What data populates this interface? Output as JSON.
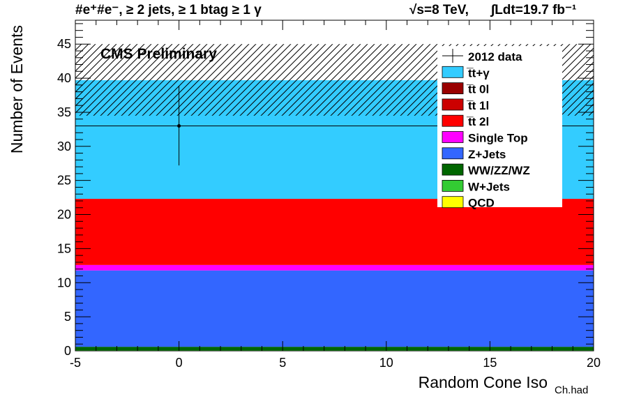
{
  "chart_data": {
    "type": "bar",
    "header_left": "#e⁺#e⁻, ≥ 2 jets, ≥ 1 btag ≥ 1 γ",
    "header_right_energy": "√s=8 TeV,",
    "header_right_lumi": "∫Ldt=19.7 fb⁻¹",
    "watermark": "CMS Preliminary",
    "xlabel": "Random Cone Iso",
    "xlabel_sub": "Ch.had",
    "ylabel": "Number of Events",
    "xlim": [
      -5,
      20
    ],
    "ylim": [
      0,
      48.5
    ],
    "x_ticks": [
      -5,
      0,
      5,
      10,
      15,
      20
    ],
    "y_ticks": [
      0,
      5,
      10,
      15,
      20,
      25,
      30,
      35,
      40,
      45
    ],
    "legend_position": "top-right",
    "bin": [
      -5,
      20
    ],
    "stack": [
      {
        "name": "QCD",
        "value": 0.0,
        "color": "#ffff00"
      },
      {
        "name": "W+Jets",
        "value": 0.1,
        "color": "#33cc33"
      },
      {
        "name": "WW/ZZ/WZ",
        "value": 0.5,
        "color": "#006600"
      },
      {
        "name": "Z+Jets",
        "value": 11.2,
        "color": "#3366ff"
      },
      {
        "name": "Single Top",
        "value": 0.8,
        "color": "#ff00ff"
      },
      {
        "name": "t̅t 2l",
        "value": 9.7,
        "color": "#ff0000"
      },
      {
        "name": "t̅t 1l",
        "value": 0.0,
        "color": "#cc0000"
      },
      {
        "name": "t̅t 0l",
        "value": 0.0,
        "color": "#990000"
      },
      {
        "name": "t̅t+γ",
        "value": 17.4,
        "color": "#33ccff"
      }
    ],
    "uncertainty_band": [
      34.5,
      45.0
    ],
    "data_points": [
      {
        "name": "2012 data",
        "x": 0,
        "y": 33,
        "y_err": 5.8,
        "x_range": [
          -5,
          20
        ]
      }
    ],
    "legend": [
      {
        "label": "2012 data",
        "style": "marker"
      },
      {
        "label": "t̅t+γ",
        "color": "#33ccff"
      },
      {
        "label": "t̅t 0l",
        "color": "#990000"
      },
      {
        "label": "t̅t 1l",
        "color": "#cc0000"
      },
      {
        "label": "t̅t 2l",
        "color": "#ff0000"
      },
      {
        "label": "Single Top",
        "color": "#ff00ff"
      },
      {
        "label": "Z+Jets",
        "color": "#3366ff"
      },
      {
        "label": "WW/ZZ/WZ",
        "color": "#006600"
      },
      {
        "label": "W+Jets",
        "color": "#33cc33"
      },
      {
        "label": "QCD",
        "color": "#ffff00"
      }
    ]
  }
}
